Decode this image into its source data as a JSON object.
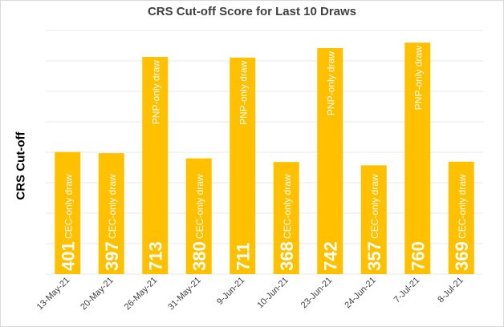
{
  "chart_data": {
    "type": "bar",
    "title": "CRS Cut-off Score for Last 10 Draws",
    "ylabel": "CRS Cut-off",
    "xlabel": "",
    "ylim": [
      0,
      800
    ],
    "grid": true,
    "bar_color": "#ffc000",
    "categories": [
      "13-May-21",
      "20-May-21",
      "26-May-21",
      "31-May-21",
      "9-Jun-21",
      "10-Jun-21",
      "23-Jun-21",
      "24-Jun-21",
      "7-Jul-21",
      "8-Jul-21"
    ],
    "values": [
      401,
      397,
      713,
      380,
      711,
      368,
      742,
      357,
      760,
      369
    ],
    "bar_annotations": [
      "CEC-only draw",
      "CEC-only draw",
      "PNP-only draw",
      "CEC-only draw",
      "PNP-only draw",
      "CEC-only draw",
      "PNP-only draw",
      "CEC-only draw",
      "PNP-only draw",
      "CEC-only draw"
    ]
  }
}
